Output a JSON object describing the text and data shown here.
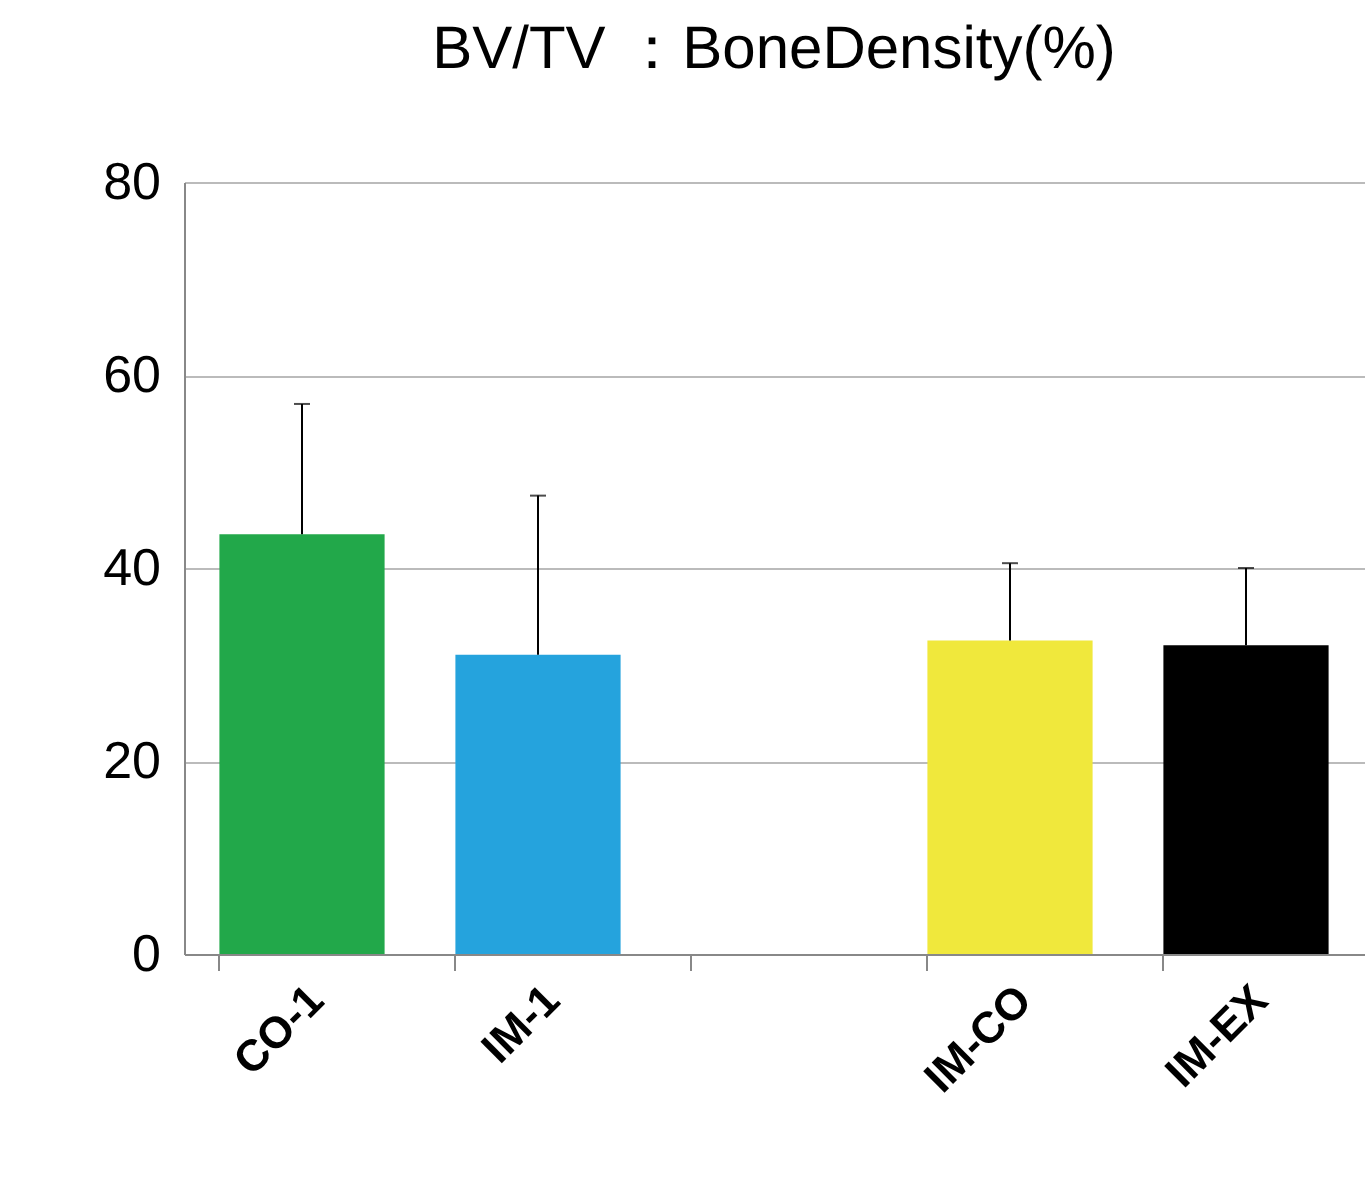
{
  "chart_data": {
    "type": "bar",
    "title": "BV/TV ：BoneDensity(%)",
    "categories": [
      "CO-1",
      "IM-1",
      null,
      "IM-CO",
      "IM-EX"
    ],
    "values": [
      43.5,
      31,
      null,
      32.5,
      32
    ],
    "colors": [
      "#22a84a",
      "#25a3dd",
      "#ffffff",
      "#f0e83c",
      "#000000"
    ],
    "errors": [
      [
        43.5,
        57
      ],
      [
        31,
        47.5
      ],
      null,
      [
        32.5,
        40.5
      ],
      [
        32,
        40
      ]
    ],
    "ylim": [
      0,
      80
    ],
    "yticks": [
      0,
      20,
      40,
      60,
      80
    ],
    "grid": "y"
  }
}
